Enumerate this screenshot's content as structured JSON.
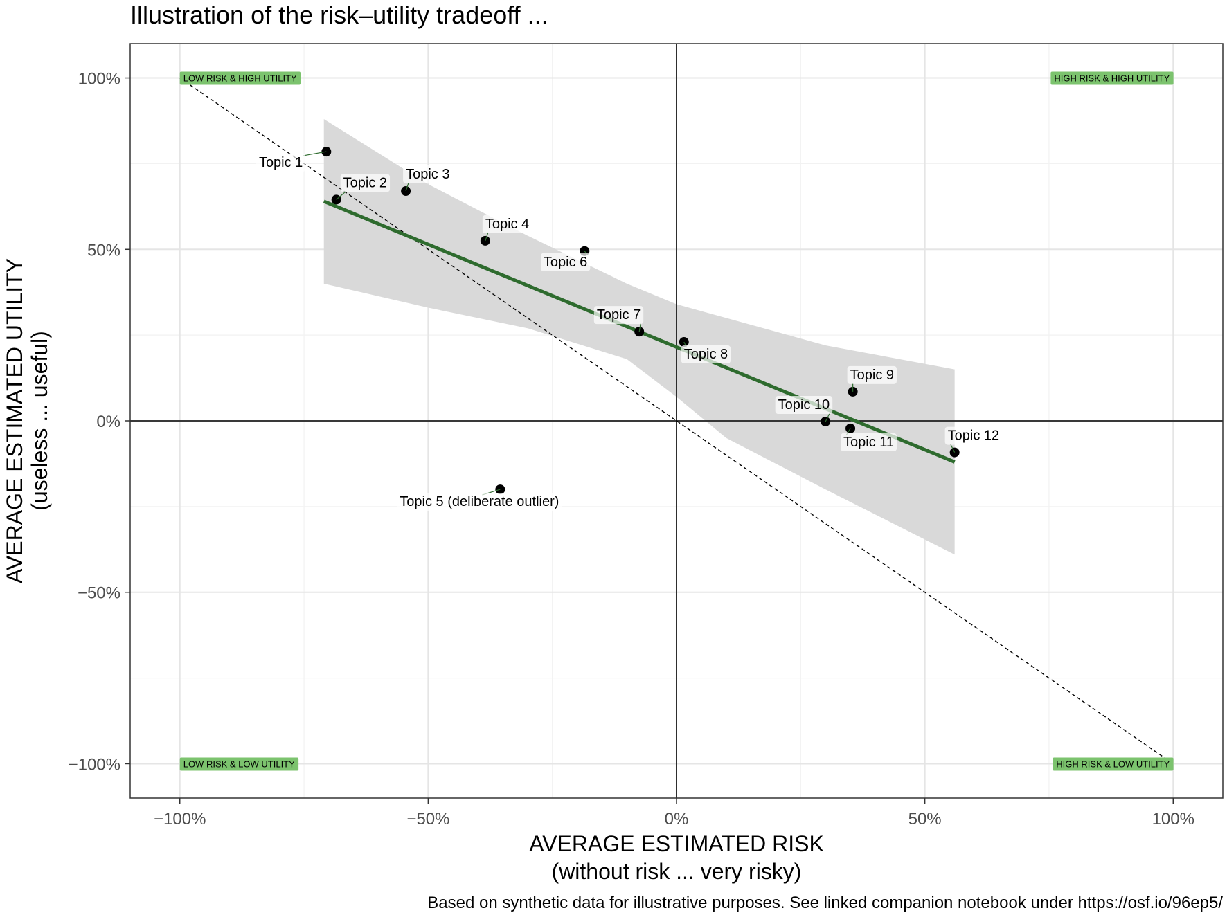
{
  "chart_data": {
    "type": "scatter",
    "title": "Illustration of the risk–utility tradeoff ...",
    "xlabel": "AVERAGE ESTIMATED RISK",
    "xlabel_sub": "(without risk ... very risky)",
    "ylabel": "AVERAGE ESTIMATED UTILITY",
    "ylabel_sub": "(useless ... useful)",
    "caption": "Based on synthetic data for illustrative purposes. See linked companion notebook under https://osf.io/96ep5/",
    "xlim": [
      -1.1,
      1.1
    ],
    "ylim": [
      -1.1,
      1.1
    ],
    "x_ticks": [
      -1,
      -0.5,
      0,
      0.5,
      1
    ],
    "x_tick_labels": [
      "−100%",
      "−50%",
      "0%",
      "50%",
      "100%"
    ],
    "y_ticks": [
      1,
      0.5,
      0,
      -0.5,
      -1
    ],
    "y_tick_labels": [
      "100%",
      "50%",
      "0%",
      "−50%",
      "−100%"
    ],
    "grid": true,
    "quadrant_labels": [
      {
        "text": "LOW RISK & HIGH UTILITY",
        "x": -1.0,
        "y": 1.0,
        "anchor": "start"
      },
      {
        "text": "HIGH RISK & HIGH UTILITY",
        "x": 1.0,
        "y": 1.0,
        "anchor": "end"
      },
      {
        "text": "LOW RISK & LOW UTILITY",
        "x": -1.0,
        "y": -1.0,
        "anchor": "start"
      },
      {
        "text": "HIGH RISK & LOW UTILITY",
        "x": 1.0,
        "y": -1.0,
        "anchor": "end"
      }
    ],
    "reference_line": {
      "style": "dashed",
      "from": [
        -1,
        1
      ],
      "to": [
        1,
        -1
      ]
    },
    "fit_line": {
      "color": "#2e6b2e",
      "from": [
        -0.71,
        0.64
      ],
      "to": [
        0.56,
        -0.12
      ]
    },
    "confidence_band": {
      "color": "#d9d9d9",
      "upper": [
        [
          -0.71,
          0.88
        ],
        [
          -0.5,
          0.69
        ],
        [
          -0.3,
          0.54
        ],
        [
          -0.1,
          0.4
        ],
        [
          0.0,
          0.34
        ],
        [
          0.1,
          0.3
        ],
        [
          0.3,
          0.22
        ],
        [
          0.56,
          0.15
        ]
      ],
      "lower": [
        [
          -0.71,
          0.4
        ],
        [
          -0.5,
          0.33
        ],
        [
          -0.3,
          0.27
        ],
        [
          -0.1,
          0.18
        ],
        [
          0.0,
          0.07
        ],
        [
          0.1,
          -0.05
        ],
        [
          0.3,
          -0.2
        ],
        [
          0.56,
          -0.39
        ]
      ]
    },
    "points": [
      {
        "label": "Topic 1",
        "x": -0.705,
        "y": 0.785
      },
      {
        "label": "Topic 2",
        "x": -0.685,
        "y": 0.645
      },
      {
        "label": "Topic 3",
        "x": -0.545,
        "y": 0.67
      },
      {
        "label": "Topic 4",
        "x": -0.385,
        "y": 0.525
      },
      {
        "label": "Topic 5 (deliberate outlier)",
        "x": -0.355,
        "y": -0.2
      },
      {
        "label": "Topic 6",
        "x": -0.185,
        "y": 0.495
      },
      {
        "label": "Topic 7",
        "x": -0.075,
        "y": 0.26
      },
      {
        "label": "Topic 8",
        "x": 0.015,
        "y": 0.23
      },
      {
        "label": "Topic 9",
        "x": 0.355,
        "y": 0.085
      },
      {
        "label": "Topic 10",
        "x": 0.3,
        "y": -0.002
      },
      {
        "label": "Topic 11",
        "x": 0.35,
        "y": -0.022
      },
      {
        "label": "Topic 12",
        "x": 0.56,
        "y": -0.092
      }
    ]
  }
}
